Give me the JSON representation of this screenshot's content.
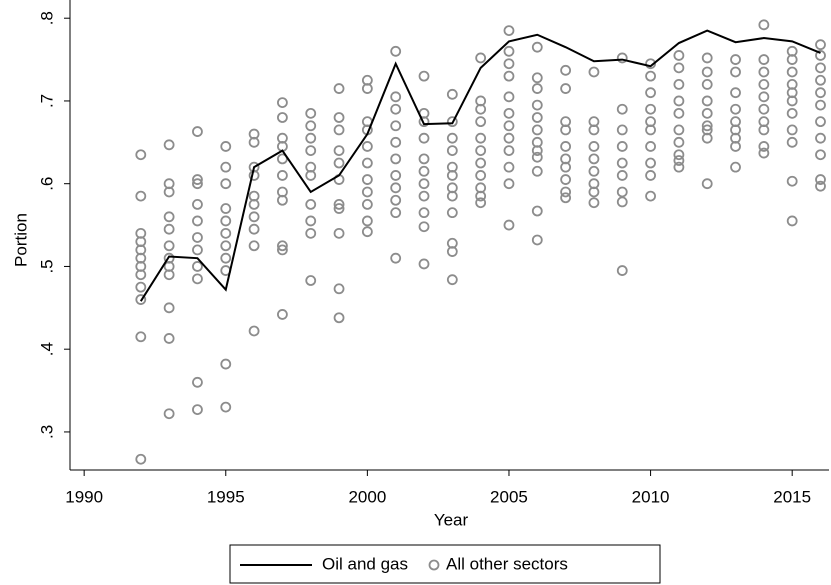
{
  "chart_data": {
    "type": "combo",
    "x_label": "Year",
    "y_label": "Portion",
    "xlim": [
      1989.5,
      2016.3
    ],
    "xticks": [
      1990,
      1995,
      2000,
      2005,
      2010,
      2015
    ],
    "ylim": [
      0.254,
      0.822
    ],
    "yticks": [
      {
        "value": 0.3,
        "label": ".3"
      },
      {
        "value": 0.4,
        "label": ".4"
      },
      {
        "value": 0.5,
        "label": ".5"
      },
      {
        "value": 0.6,
        "label": ".6"
      },
      {
        "value": 0.7,
        "label": ".7"
      },
      {
        "value": 0.8,
        "label": ".8"
      }
    ],
    "legend": "bottom",
    "series": [
      {
        "name": "Oil and gas",
        "type": "line",
        "color": "#000000",
        "x": [
          1992,
          1993,
          1994,
          1995,
          1996,
          1997,
          1998,
          1999,
          2000,
          2001,
          2002,
          2003,
          2004,
          2005,
          2006,
          2007,
          2008,
          2009,
          2010,
          2011,
          2012,
          2013,
          2014,
          2015,
          2016
        ],
        "values": [
          0.458,
          0.512,
          0.51,
          0.472,
          0.62,
          0.64,
          0.59,
          0.61,
          0.66,
          0.745,
          0.672,
          0.673,
          0.74,
          0.772,
          0.78,
          0.765,
          0.748,
          0.75,
          0.742,
          0.77,
          0.785,
          0.771,
          0.776,
          0.772,
          0.758
        ]
      },
      {
        "name": "All other sectors",
        "type": "scatter",
        "color": "#8c8c8c",
        "groups": [
          {
            "x": 1992,
            "values": [
              0.635,
              0.585,
              0.54,
              0.53,
              0.52,
              0.51,
              0.5,
              0.49,
              0.475,
              0.46,
              0.415,
              0.267
            ]
          },
          {
            "x": 1993,
            "values": [
              0.647,
              0.6,
              0.59,
              0.56,
              0.545,
              0.525,
              0.51,
              0.5,
              0.49,
              0.45,
              0.413,
              0.322
            ]
          },
          {
            "x": 1994,
            "values": [
              0.663,
              0.605,
              0.6,
              0.575,
              0.555,
              0.535,
              0.52,
              0.5,
              0.485,
              0.36,
              0.327
            ]
          },
          {
            "x": 1995,
            "values": [
              0.645,
              0.62,
              0.6,
              0.57,
              0.555,
              0.54,
              0.525,
              0.51,
              0.495,
              0.382,
              0.33
            ]
          },
          {
            "x": 1996,
            "values": [
              0.66,
              0.65,
              0.62,
              0.61,
              0.585,
              0.575,
              0.56,
              0.545,
              0.525,
              0.422
            ]
          },
          {
            "x": 1997,
            "values": [
              0.698,
              0.68,
              0.655,
              0.645,
              0.63,
              0.61,
              0.59,
              0.58,
              0.525,
              0.52,
              0.442
            ]
          },
          {
            "x": 1998,
            "values": [
              0.685,
              0.67,
              0.655,
              0.64,
              0.62,
              0.61,
              0.575,
              0.555,
              0.54,
              0.483
            ]
          },
          {
            "x": 1999,
            "values": [
              0.715,
              0.68,
              0.665,
              0.64,
              0.625,
              0.605,
              0.575,
              0.57,
              0.54,
              0.473,
              0.438
            ]
          },
          {
            "x": 2000,
            "values": [
              0.725,
              0.715,
              0.675,
              0.665,
              0.645,
              0.625,
              0.605,
              0.59,
              0.575,
              0.555,
              0.542
            ]
          },
          {
            "x": 2001,
            "values": [
              0.76,
              0.705,
              0.69,
              0.67,
              0.65,
              0.63,
              0.61,
              0.595,
              0.58,
              0.565,
              0.51
            ]
          },
          {
            "x": 2002,
            "values": [
              0.73,
              0.685,
              0.675,
              0.655,
              0.63,
              0.615,
              0.6,
              0.585,
              0.565,
              0.548,
              0.503
            ]
          },
          {
            "x": 2003,
            "values": [
              0.708,
              0.675,
              0.655,
              0.64,
              0.62,
              0.61,
              0.595,
              0.585,
              0.565,
              0.528,
              0.518,
              0.484
            ]
          },
          {
            "x": 2004,
            "values": [
              0.752,
              0.7,
              0.69,
              0.675,
              0.655,
              0.64,
              0.625,
              0.61,
              0.595,
              0.585,
              0.577
            ]
          },
          {
            "x": 2005,
            "values": [
              0.785,
              0.76,
              0.745,
              0.73,
              0.705,
              0.685,
              0.67,
              0.655,
              0.64,
              0.62,
              0.6,
              0.55
            ]
          },
          {
            "x": 2006,
            "values": [
              0.765,
              0.728,
              0.715,
              0.695,
              0.68,
              0.665,
              0.65,
              0.64,
              0.632,
              0.615,
              0.567,
              0.532
            ]
          },
          {
            "x": 2007,
            "values": [
              0.737,
              0.715,
              0.675,
              0.665,
              0.645,
              0.63,
              0.62,
              0.605,
              0.59,
              0.583
            ]
          },
          {
            "x": 2008,
            "values": [
              0.735,
              0.675,
              0.665,
              0.645,
              0.63,
              0.615,
              0.6,
              0.59,
              0.577
            ]
          },
          {
            "x": 2009,
            "values": [
              0.752,
              0.69,
              0.665,
              0.645,
              0.625,
              0.61,
              0.59,
              0.578,
              0.495
            ]
          },
          {
            "x": 2010,
            "values": [
              0.745,
              0.73,
              0.71,
              0.69,
              0.675,
              0.665,
              0.645,
              0.625,
              0.61,
              0.585
            ]
          },
          {
            "x": 2011,
            "values": [
              0.755,
              0.74,
              0.72,
              0.7,
              0.685,
              0.665,
              0.65,
              0.635,
              0.628,
              0.62
            ]
          },
          {
            "x": 2012,
            "values": [
              0.752,
              0.735,
              0.72,
              0.7,
              0.685,
              0.67,
              0.665,
              0.655,
              0.6
            ]
          },
          {
            "x": 2013,
            "values": [
              0.75,
              0.735,
              0.71,
              0.69,
              0.675,
              0.665,
              0.655,
              0.645,
              0.62
            ]
          },
          {
            "x": 2014,
            "values": [
              0.792,
              0.75,
              0.735,
              0.72,
              0.705,
              0.69,
              0.675,
              0.665,
              0.645,
              0.637
            ]
          },
          {
            "x": 2015,
            "values": [
              0.76,
              0.75,
              0.735,
              0.72,
              0.71,
              0.7,
              0.685,
              0.665,
              0.65,
              0.603,
              0.555
            ]
          },
          {
            "x": 2016,
            "values": [
              0.768,
              0.755,
              0.74,
              0.725,
              0.71,
              0.695,
              0.675,
              0.655,
              0.635,
              0.605,
              0.597
            ]
          }
        ]
      }
    ]
  }
}
